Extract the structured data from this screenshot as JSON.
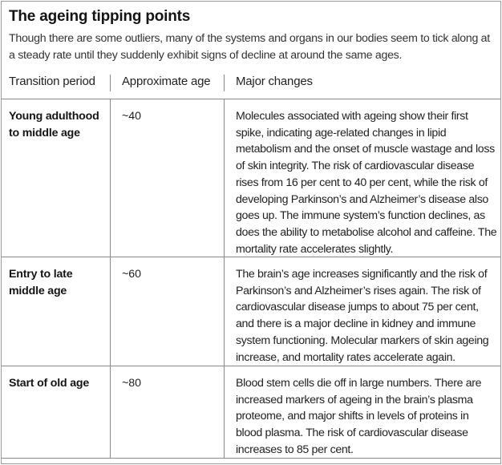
{
  "title": "The ageing tipping points",
  "subtitle": "Though there are some outliers, many of the systems and organs in our bodies seem to tick along at a steady rate until they suddenly exhibit signs of decline at around the same ages.",
  "table": {
    "headers": {
      "period": "Transition period",
      "age": "Approximate age",
      "changes": "Major changes"
    },
    "rows": [
      {
        "period": "Young adulthood to middle age",
        "age": "~40",
        "changes": "Molecules associated with ageing show their first spike, indicating age-related changes in lipid metabolism and the onset of muscle wastage and loss of skin integrity. The risk of cardiovascular disease rises from 16 per cent to 40 per cent, while the risk of developing Parkinson’s and Alzheimer’s disease also goes up. The immune system’s function declines, as does the ability to metabolise alcohol and caffeine. The mortality rate accelerates slightly."
      },
      {
        "period": "Entry to late middle age",
        "age": "~60",
        "changes": "The brain’s age increases significantly and the risk of Parkinson’s and Alzheimer’s rises again. The risk of cardiovascular disease jumps to about 75 per cent, and there is a major decline in kidney and immune system functioning. Molecular markers of skin ageing increase, and mortality rates accelerate again."
      },
      {
        "period": "Start of old age",
        "age": "~80",
        "changes": "Blood stem cells die off in large numbers. There are increased markers of ageing in the brain’s plasma proteome, and major shifts in levels of proteins in blood plasma. The risk of cardiovascular disease increases to 85 per cent."
      }
    ]
  }
}
